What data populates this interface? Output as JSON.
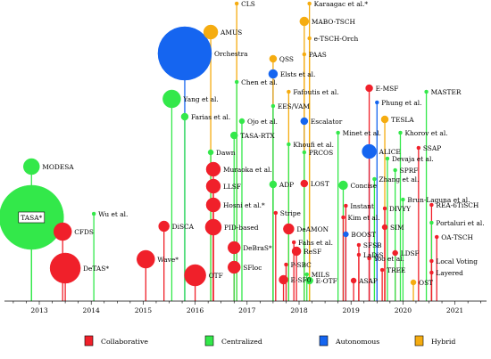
{
  "chart_data": {
    "type": "scatter",
    "title": "",
    "xlabel": "",
    "ylabel": "",
    "x_ticks": [
      "2013",
      "2014",
      "2015",
      "2016",
      "2017",
      "2018",
      "2019",
      "2020",
      "2021"
    ],
    "xlim": [
      2012.4,
      2021.7
    ],
    "grid": false,
    "legend_position": "bottom",
    "categories": [
      {
        "name": "Collaborative",
        "color": "#f0202a"
      },
      {
        "name": "Centralized",
        "color": "#33e84a"
      },
      {
        "name": "Autonomous",
        "color": "#1565f0"
      },
      {
        "name": "Hybrid",
        "color": "#f5ac10"
      }
    ],
    "points": [
      {
        "label": "TASA*",
        "year": 2012.85,
        "height": 94,
        "size": 36,
        "category": "Centralized",
        "boxed": true
      },
      {
        "label": "MODESA",
        "year": 2012.85,
        "height": 151,
        "size": 9,
        "category": "Centralized"
      },
      {
        "label": "CFDS",
        "year": 2013.45,
        "height": 78,
        "size": 10,
        "category": "Collaborative"
      },
      {
        "label": "DeTAS*",
        "year": 2013.5,
        "height": 37,
        "size": 17,
        "category": "Collaborative"
      },
      {
        "label": "Wu et al.",
        "year": 2014.05,
        "height": 98,
        "size": 2,
        "category": "Centralized"
      },
      {
        "label": "Wave*",
        "year": 2015.05,
        "height": 47,
        "size": 10,
        "category": "Collaborative"
      },
      {
        "label": "DiSCA",
        "year": 2015.4,
        "height": 84,
        "size": 6,
        "category": "Collaborative"
      },
      {
        "label": "Orchestra",
        "year": 2015.8,
        "height": 278,
        "size": 30,
        "category": "Autonomous"
      },
      {
        "label": "OTF",
        "year": 2016.0,
        "height": 29,
        "size": 12,
        "category": "Collaborative"
      },
      {
        "label": "Yang et al.",
        "year": 2015.55,
        "height": 227,
        "size": 10,
        "category": "Centralized"
      },
      {
        "label": "Farias et al.",
        "year": 2015.8,
        "height": 207,
        "size": 4,
        "category": "Centralized"
      },
      {
        "label": "AMUS",
        "year": 2016.3,
        "height": 302,
        "size": 8,
        "category": "Hybrid"
      },
      {
        "label": "Dawn",
        "year": 2016.3,
        "height": 167,
        "size": 3,
        "category": "Centralized"
      },
      {
        "label": "Muraoka et al.",
        "year": 2016.35,
        "height": 148,
        "size": 8,
        "category": "Collaborative"
      },
      {
        "label": "LLSF",
        "year": 2016.35,
        "height": 129,
        "size": 8,
        "category": "Collaborative"
      },
      {
        "label": "Hosni et al.*",
        "year": 2016.35,
        "height": 108,
        "size": 8,
        "category": "Collaborative"
      },
      {
        "label": "PID-based",
        "year": 2016.35,
        "height": 83,
        "size": 9,
        "category": "Collaborative"
      },
      {
        "label": "CLS",
        "year": 2016.8,
        "height": 334,
        "size": 2,
        "category": "Hybrid"
      },
      {
        "label": "Chen et al.",
        "year": 2016.8,
        "height": 246,
        "size": 2,
        "category": "Centralized"
      },
      {
        "label": "TASA-RTX",
        "year": 2016.75,
        "height": 186,
        "size": 4,
        "category": "Centralized"
      },
      {
        "label": "Ojo et al.",
        "year": 2016.9,
        "height": 202,
        "size": 3,
        "category": "Centralized"
      },
      {
        "label": "DeBraS*",
        "year": 2016.75,
        "height": 60,
        "size": 7,
        "category": "Collaborative"
      },
      {
        "label": "SFloc",
        "year": 2016.75,
        "height": 38,
        "size": 7,
        "category": "Collaborative"
      },
      {
        "label": "QSS",
        "year": 2017.5,
        "height": 272,
        "size": 4,
        "category": "Hybrid"
      },
      {
        "label": "Elsts et al.",
        "year": 2017.5,
        "height": 255,
        "size": 5,
        "category": "Autonomous"
      },
      {
        "label": "EES/VAM",
        "year": 2017.5,
        "height": 219,
        "size": 2,
        "category": "Centralized"
      },
      {
        "label": "ADP",
        "year": 2017.5,
        "height": 131,
        "size": 4,
        "category": "Centralized"
      },
      {
        "label": "Stripe",
        "year": 2017.55,
        "height": 99,
        "size": 2,
        "category": "Collaborative"
      },
      {
        "label": "DeAMON",
        "year": 2017.8,
        "height": 81,
        "size": 6,
        "category": "Collaborative"
      },
      {
        "label": "ReSF",
        "year": 2017.95,
        "height": 56,
        "size": 5,
        "category": "Collaborative"
      },
      {
        "label": "P-SBC",
        "year": 2017.75,
        "height": 41,
        "size": 2,
        "category": "Collaborative"
      },
      {
        "label": "E-SF0",
        "year": 2017.7,
        "height": 24,
        "size": 5,
        "category": "Collaborative"
      },
      {
        "label": "Karaagac et al.*",
        "year": 2018.2,
        "height": 334,
        "size": 2,
        "category": "Hybrid"
      },
      {
        "label": "MABO-TSCH",
        "year": 2018.1,
        "height": 314,
        "size": 5,
        "category": "Hybrid"
      },
      {
        "label": "e-TSCH-Orch",
        "year": 2018.2,
        "height": 295,
        "size": 2,
        "category": "Hybrid"
      },
      {
        "label": "PAAS",
        "year": 2018.1,
        "height": 277,
        "size": 2,
        "category": "Hybrid"
      },
      {
        "label": "Fafoutis et al.",
        "year": 2017.8,
        "height": 235,
        "size": 2,
        "category": "Hybrid"
      },
      {
        "label": "Khoufi et al.",
        "year": 2017.8,
        "height": 176,
        "size": 2,
        "category": "Centralized"
      },
      {
        "label": "Escalator",
        "year": 2018.1,
        "height": 202,
        "size": 4,
        "category": "Autonomous"
      },
      {
        "label": "PRCOS",
        "year": 2018.1,
        "height": 167,
        "size": 2,
        "category": "Centralized"
      },
      {
        "label": "LOST",
        "year": 2018.1,
        "height": 132,
        "size": 4,
        "category": "Collaborative"
      },
      {
        "label": "Fahs et al.",
        "year": 2017.9,
        "height": 66,
        "size": 2,
        "category": "Collaborative"
      },
      {
        "label": "MILS",
        "year": 2018.15,
        "height": 30,
        "size": 2,
        "category": "Centralized"
      },
      {
        "label": "E-OTF",
        "year": 2018.2,
        "height": 23,
        "size": 4,
        "category": "Centralized"
      },
      {
        "label": "Concise",
        "year": 2018.85,
        "height": 130,
        "size": 5,
        "category": "Centralized"
      },
      {
        "label": "Minet et al.",
        "year": 2018.75,
        "height": 189,
        "size": 2,
        "category": "Centralized"
      },
      {
        "label": "Instant",
        "year": 2018.9,
        "height": 107,
        "size": 2,
        "category": "Collaborative"
      },
      {
        "label": "Kim et al.",
        "year": 2018.85,
        "height": 94,
        "size": 2,
        "category": "Collaborative"
      },
      {
        "label": "BOOST",
        "year": 2018.9,
        "height": 75,
        "size": 3,
        "category": "Autonomous"
      },
      {
        "label": "SFSB",
        "year": 2019.15,
        "height": 63,
        "size": 2,
        "category": "Collaborative"
      },
      {
        "label": "LaDiS",
        "year": 2019.15,
        "height": 52,
        "size": 2,
        "category": "Collaborative"
      },
      {
        "label": "ASAP",
        "year": 2019.05,
        "height": 23,
        "size": 3,
        "category": "Collaborative"
      },
      {
        "label": "E-MSF",
        "year": 2019.35,
        "height": 239,
        "size": 4,
        "category": "Collaborative"
      },
      {
        "label": "Phung et al.",
        "year": 2019.5,
        "height": 223,
        "size": 2,
        "category": "Autonomous"
      },
      {
        "label": "ALICE",
        "year": 2019.35,
        "height": 168,
        "size": 8,
        "category": "Autonomous"
      },
      {
        "label": "Zhang et al.",
        "year": 2019.45,
        "height": 137,
        "size": 2,
        "category": "Centralized"
      },
      {
        "label": "Devaja et al.",
        "year": 2019.7,
        "height": 160,
        "size": 2,
        "category": "Centralized"
      },
      {
        "label": "TESLA",
        "year": 2019.65,
        "height": 204,
        "size": 4,
        "category": "Hybrid"
      },
      {
        "label": "Khorov et al.",
        "year": 2019.95,
        "height": 189,
        "size": 2,
        "category": "Centralized"
      },
      {
        "label": "SPRF",
        "year": 2019.85,
        "height": 147,
        "size": 2,
        "category": "Centralized"
      },
      {
        "label": "SSAP",
        "year": 2020.3,
        "height": 172,
        "size": 2,
        "category": "Collaborative"
      },
      {
        "label": "Brun-Laguna et al.",
        "year": 2020.0,
        "height": 114,
        "size": 2,
        "category": "Centralized"
      },
      {
        "label": "DIVYY",
        "year": 2019.65,
        "height": 104,
        "size": 2,
        "category": "Collaborative"
      },
      {
        "label": "SIM",
        "year": 2019.65,
        "height": 83,
        "size": 3,
        "category": "Collaborative"
      },
      {
        "label": "Yoo et al.",
        "year": 2019.35,
        "height": 48,
        "size": 2,
        "category": "Collaborative"
      },
      {
        "label": "TREE",
        "year": 2019.6,
        "height": 35,
        "size": 2,
        "category": "Collaborative"
      },
      {
        "label": "LDSF",
        "year": 2019.85,
        "height": 54,
        "size": 3,
        "category": "Collaborative"
      },
      {
        "label": "OST",
        "year": 2020.2,
        "height": 21,
        "size": 3,
        "category": "Hybrid"
      },
      {
        "label": "MASTER",
        "year": 2020.45,
        "height": 235,
        "size": 2,
        "category": "Centralized"
      },
      {
        "label": "REA-6TiSCH",
        "year": 2020.55,
        "height": 108,
        "size": 2,
        "category": "Collaborative"
      },
      {
        "label": "Portaluri et al.",
        "year": 2020.55,
        "height": 88,
        "size": 2,
        "category": "Centralized"
      },
      {
        "label": "OA-TSCH",
        "year": 2020.65,
        "height": 72,
        "size": 2,
        "category": "Collaborative"
      },
      {
        "label": "Local Voting",
        "year": 2020.55,
        "height": 45,
        "size": 2,
        "category": "Collaborative"
      },
      {
        "label": "Layered",
        "year": 2020.55,
        "height": 32,
        "size": 2,
        "category": "Collaborative"
      }
    ]
  }
}
